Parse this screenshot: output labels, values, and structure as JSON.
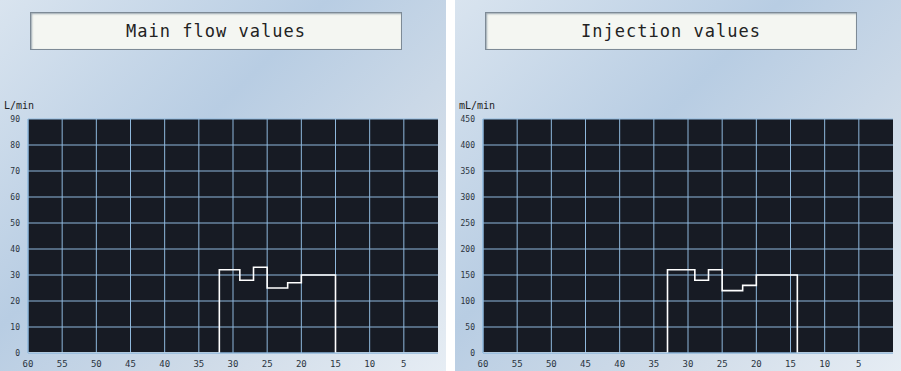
{
  "chart_data": [
    {
      "type": "line",
      "title": "Main flow values",
      "ylabel": "L/min",
      "x": [
        60,
        32,
        32,
        29,
        29,
        27,
        27,
        25,
        25,
        22,
        22,
        20,
        20,
        15,
        15,
        0
      ],
      "values": [
        0,
        0,
        32,
        32,
        28,
        28,
        33,
        33,
        25,
        25,
        27,
        27,
        30,
        30,
        0,
        0
      ],
      "color": "#ffffff",
      "xlim": [
        0,
        60
      ],
      "xticks": [
        60,
        55,
        50,
        45,
        40,
        35,
        30,
        25,
        20,
        15,
        10,
        5
      ],
      "ylim": [
        0,
        90
      ],
      "yticks": [
        0,
        10,
        20,
        30,
        40,
        50,
        60,
        70,
        80,
        90
      ],
      "grid": true
    },
    {
      "type": "line",
      "title": "Injection values",
      "ylabel": "mL/min",
      "x": [
        60,
        33,
        33,
        29,
        29,
        27,
        27,
        25,
        25,
        22,
        22,
        20,
        20,
        14,
        14,
        0
      ],
      "values": [
        0,
        0,
        160,
        160,
        140,
        140,
        160,
        160,
        120,
        120,
        130,
        130,
        150,
        150,
        0,
        0
      ],
      "color": "#ffffff",
      "xlim": [
        0,
        60
      ],
      "xticks": [
        60,
        55,
        50,
        45,
        40,
        35,
        30,
        25,
        20,
        15,
        10,
        5
      ],
      "ylim": [
        0,
        450
      ],
      "yticks": [
        0,
        50,
        100,
        150,
        200,
        250,
        300,
        350,
        400,
        450
      ],
      "grid": true
    }
  ]
}
